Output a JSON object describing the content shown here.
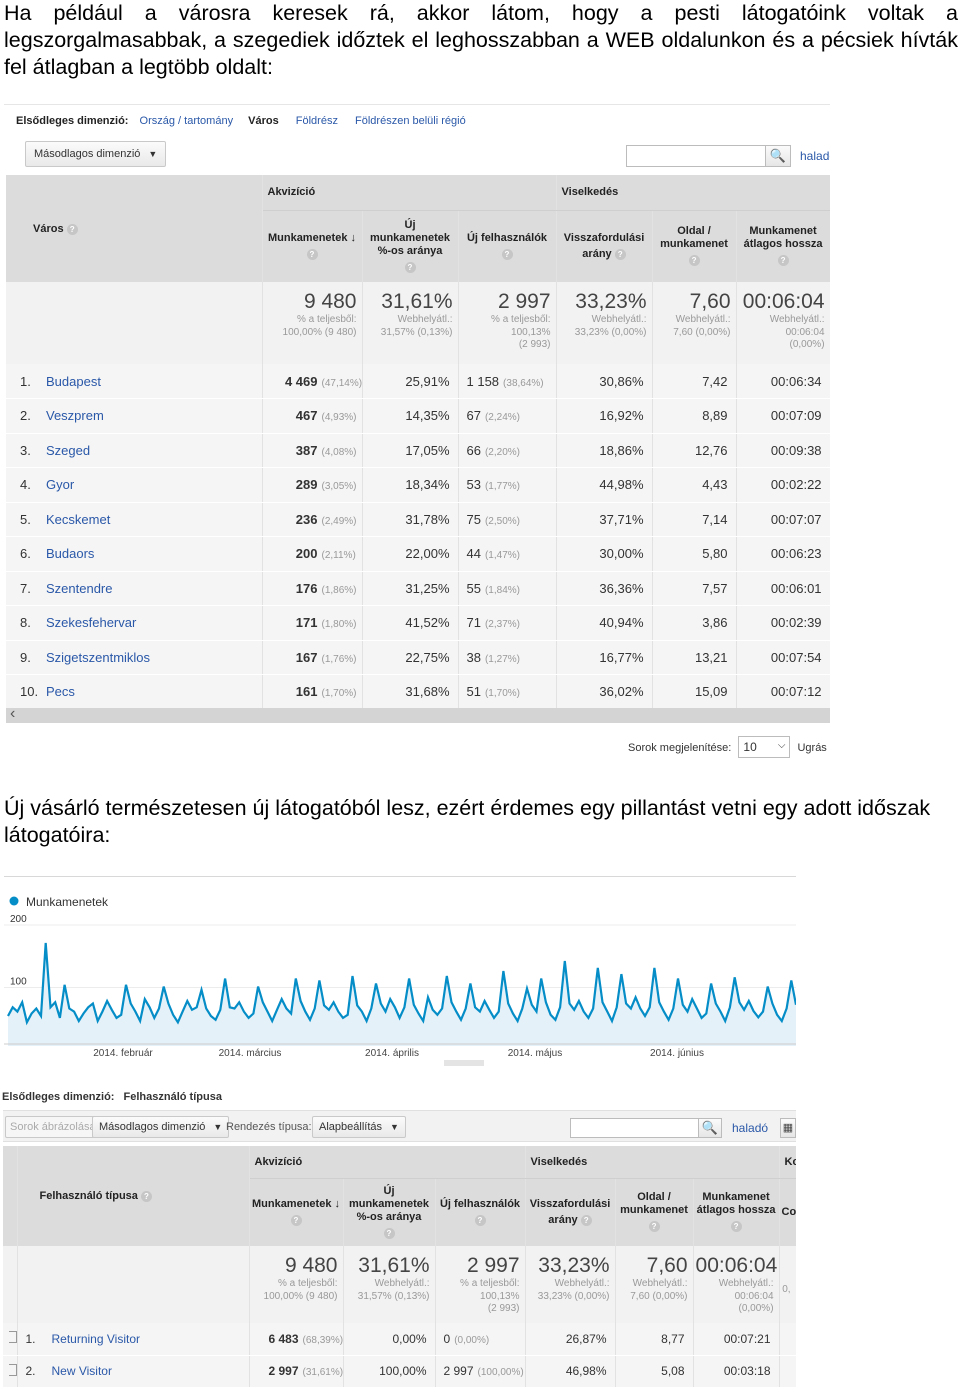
{
  "paragraph_1": "Ha például a városra keresek rá, akkor látom, hogy a pesti látogatóink voltak a legszorgalmasabbak, a szegediek időztek el leghosszabban a WEB oldalunkon és a pécsiek hívták fel átlagban a legtöbb oldalt:",
  "paragraph_2": "Új vásárló természetesen új látogatóból lesz, ezért érdemes egy pillantást vetni egy adott időszak látogatóira:",
  "report1": {
    "primary_dimension_label": "Elsődleges dimenzió:",
    "dimension_links": [
      "Ország / tartomány",
      "Város",
      "Földrész",
      "Földrészen belüli régió"
    ],
    "active_dimension": "Város",
    "secondary_dimension": "Másodlagos dimenzió",
    "advanced_link": "haladó",
    "group_acquisition": "Akvizíció",
    "group_behavior": "Viselkedés",
    "dimension_header": "Város",
    "columns": [
      "Munkamenetek",
      "Új munkamenetek %-os aránya",
      "Új felhasználók",
      "Visszafordulási arány",
      "Oldal / munkamenet",
      "Munkamenet átlagos hossza"
    ],
    "totals": [
      {
        "value": "9 480",
        "sub1": "% a teljesből:",
        "sub2": "100,00% (9 480)",
        "sub3": ""
      },
      {
        "value": "31,61%",
        "sub1": "Webhelyátl.:",
        "sub2": "31,57% (0,13%)",
        "sub3": ""
      },
      {
        "value": "2 997",
        "sub1": "% a teljesből:",
        "sub2": "100,13%",
        "sub3": "(2 993)"
      },
      {
        "value": "33,23%",
        "sub1": "Webhelyátl.:",
        "sub2": "33,23% (0,00%)",
        "sub3": ""
      },
      {
        "value": "7,60",
        "sub1": "Webhelyátl.:",
        "sub2": "7,60 (0,00%)",
        "sub3": ""
      },
      {
        "value": "00:06:04",
        "sub1": "Webhelyátl.:",
        "sub2": "00:06:04",
        "sub3": "(0,00%)"
      }
    ],
    "rows": [
      {
        "idx": "1.",
        "name": "Budapest",
        "sessions": "4 469",
        "sessions_pct": "(47,14%)",
        "new_pct": "25,91%",
        "new_users": "1 158",
        "new_users_pct": "(38,64%)",
        "bounce": "30,86%",
        "pages": "7,42",
        "duration": "00:06:34"
      },
      {
        "idx": "2.",
        "name": "Veszprem",
        "sessions": "467",
        "sessions_pct": "(4,93%)",
        "new_pct": "14,35%",
        "new_users": "67",
        "new_users_pct": "(2,24%)",
        "bounce": "16,92%",
        "pages": "8,89",
        "duration": "00:07:09"
      },
      {
        "idx": "3.",
        "name": "Szeged",
        "sessions": "387",
        "sessions_pct": "(4,08%)",
        "new_pct": "17,05%",
        "new_users": "66",
        "new_users_pct": "(2,20%)",
        "bounce": "18,86%",
        "pages": "12,76",
        "duration": "00:09:38"
      },
      {
        "idx": "4.",
        "name": "Gyor",
        "sessions": "289",
        "sessions_pct": "(3,05%)",
        "new_pct": "18,34%",
        "new_users": "53",
        "new_users_pct": "(1,77%)",
        "bounce": "44,98%",
        "pages": "4,43",
        "duration": "00:02:22"
      },
      {
        "idx": "5.",
        "name": "Kecskemet",
        "sessions": "236",
        "sessions_pct": "(2,49%)",
        "new_pct": "31,78%",
        "new_users": "75",
        "new_users_pct": "(2,50%)",
        "bounce": "37,71%",
        "pages": "7,14",
        "duration": "00:07:07"
      },
      {
        "idx": "6.",
        "name": "Budaors",
        "sessions": "200",
        "sessions_pct": "(2,11%)",
        "new_pct": "22,00%",
        "new_users": "44",
        "new_users_pct": "(1,47%)",
        "bounce": "30,00%",
        "pages": "5,80",
        "duration": "00:06:23"
      },
      {
        "idx": "7.",
        "name": "Szentendre",
        "sessions": "176",
        "sessions_pct": "(1,86%)",
        "new_pct": "31,25%",
        "new_users": "55",
        "new_users_pct": "(1,84%)",
        "bounce": "36,36%",
        "pages": "7,57",
        "duration": "00:06:01"
      },
      {
        "idx": "8.",
        "name": "Szekesfehervar",
        "sessions": "171",
        "sessions_pct": "(1,80%)",
        "new_pct": "41,52%",
        "new_users": "71",
        "new_users_pct": "(2,37%)",
        "bounce": "40,94%",
        "pages": "3,86",
        "duration": "00:02:39"
      },
      {
        "idx": "9.",
        "name": "Szigetszentmiklos",
        "sessions": "167",
        "sessions_pct": "(1,76%)",
        "new_pct": "22,75%",
        "new_users": "38",
        "new_users_pct": "(1,27%)",
        "bounce": "16,77%",
        "pages": "13,21",
        "duration": "00:07:54"
      },
      {
        "idx": "10.",
        "name": "Pecs",
        "sessions": "161",
        "sessions_pct": "(1,70%)",
        "new_pct": "31,68%",
        "new_users": "51",
        "new_users_pct": "(1,70%)",
        "bounce": "36,02%",
        "pages": "15,09",
        "duration": "00:07:12"
      }
    ],
    "rows_shown_label": "Sorok megjelenítése:",
    "rows_shown_value": "10",
    "goto_label": "Ugrás ic"
  },
  "chart_data": {
    "type": "line",
    "legend": "Munkamenetek",
    "y_ticks": [
      "200",
      "100"
    ],
    "ylim": [
      0,
      200
    ],
    "x_labels": [
      "2014. február",
      "2014. március",
      "2014. április",
      "2014. május",
      "2014. június"
    ],
    "values": [
      48,
      62,
      55,
      70,
      38,
      52,
      60,
      48,
      165,
      62,
      70,
      45,
      98,
      60,
      55,
      40,
      52,
      62,
      68,
      40,
      55,
      72,
      58,
      45,
      50,
      98,
      68,
      55,
      40,
      75,
      62,
      45,
      60,
      95,
      68,
      50,
      38,
      55,
      72,
      58,
      62,
      90,
      60,
      48,
      42,
      58,
      108,
      62,
      60,
      70,
      55,
      45,
      52,
      95,
      70,
      55,
      40,
      58,
      75,
      60,
      52,
      108,
      72,
      55,
      42,
      60,
      105,
      65,
      58,
      70,
      55,
      45,
      50,
      112,
      65,
      55,
      40,
      60,
      100,
      68,
      55,
      75,
      62,
      45,
      62,
      108,
      66,
      52,
      40,
      78,
      58,
      50,
      60,
      112,
      70,
      55,
      42,
      60,
      100,
      62,
      55,
      72,
      58,
      45,
      55,
      120,
      68,
      52,
      40,
      60,
      92,
      66,
      55,
      108,
      70,
      50,
      42,
      62,
      136,
      68,
      58,
      72,
      55,
      45,
      60,
      125,
      70,
      55,
      40,
      62,
      115,
      68,
      60,
      78,
      60,
      48,
      62,
      125,
      70,
      55,
      42,
      60,
      108,
      66,
      55,
      75,
      60,
      45,
      52,
      100,
      68,
      55,
      40,
      62,
      110,
      70,
      58,
      72,
      56,
      46,
      55,
      95,
      68,
      50,
      40,
      60,
      105,
      66
    ]
  },
  "report2": {
    "primary_dimension_label": "Elsődleges dimenzió:",
    "active_dimension": "Felhasználó típusa",
    "plot_rows": "Sorok ábrázolása",
    "secondary_dimension": "Másodlagos dimenzió",
    "sort_label": "Rendezés típusa:",
    "sort_value": "Alapbeállítás",
    "advanced_link": "haladó",
    "group_acquisition": "Akvizíció",
    "group_behavior": "Viselkedés",
    "group_conversions": "Ko",
    "dimension_header": "Felhasználó típusa",
    "columns": [
      "Munkamenetek",
      "Új munkamenetek %-os aránya",
      "Új felhasználók",
      "Visszafordulási arány",
      "Oldal / munkamenet",
      "Munkamenet átlagos hossza"
    ],
    "extra_col_fragments": [
      "Co",
      "0,"
    ],
    "totals": [
      {
        "value": "9 480",
        "sub1": "% a teljesből:",
        "sub2": "100,00% (9 480)",
        "sub3": ""
      },
      {
        "value": "31,61%",
        "sub1": "Webhelyátl.:",
        "sub2": "31,57% (0,13%)",
        "sub3": ""
      },
      {
        "value": "2 997",
        "sub1": "% a teljesből:",
        "sub2": "100,13%",
        "sub3": "(2 993)"
      },
      {
        "value": "33,23%",
        "sub1": "Webhelyátl.:",
        "sub2": "33,23% (0,00%)",
        "sub3": ""
      },
      {
        "value": "7,60",
        "sub1": "Webhelyátl.:",
        "sub2": "7,60 (0,00%)",
        "sub3": ""
      },
      {
        "value": "00:06:04",
        "sub1": "Webhelyátl.:",
        "sub2": "00:06:04",
        "sub3": "(0,00%)"
      }
    ],
    "rows": [
      {
        "idx": "1.",
        "name": "Returning Visitor",
        "sessions": "6 483",
        "sessions_pct": "(68,39%)",
        "new_pct": "0,00%",
        "new_users": "0",
        "new_users_pct": "(0,00%)",
        "bounce": "26,87%",
        "pages": "8,77",
        "duration": "00:07:21"
      },
      {
        "idx": "2.",
        "name": "New Visitor",
        "sessions": "2 997",
        "sessions_pct": "(31,61%)",
        "new_pct": "100,00%",
        "new_users": "2 997",
        "new_users_pct": "(100,00%)",
        "bounce": "46,98%",
        "pages": "5,08",
        "duration": "00:03:18"
      }
    ]
  }
}
